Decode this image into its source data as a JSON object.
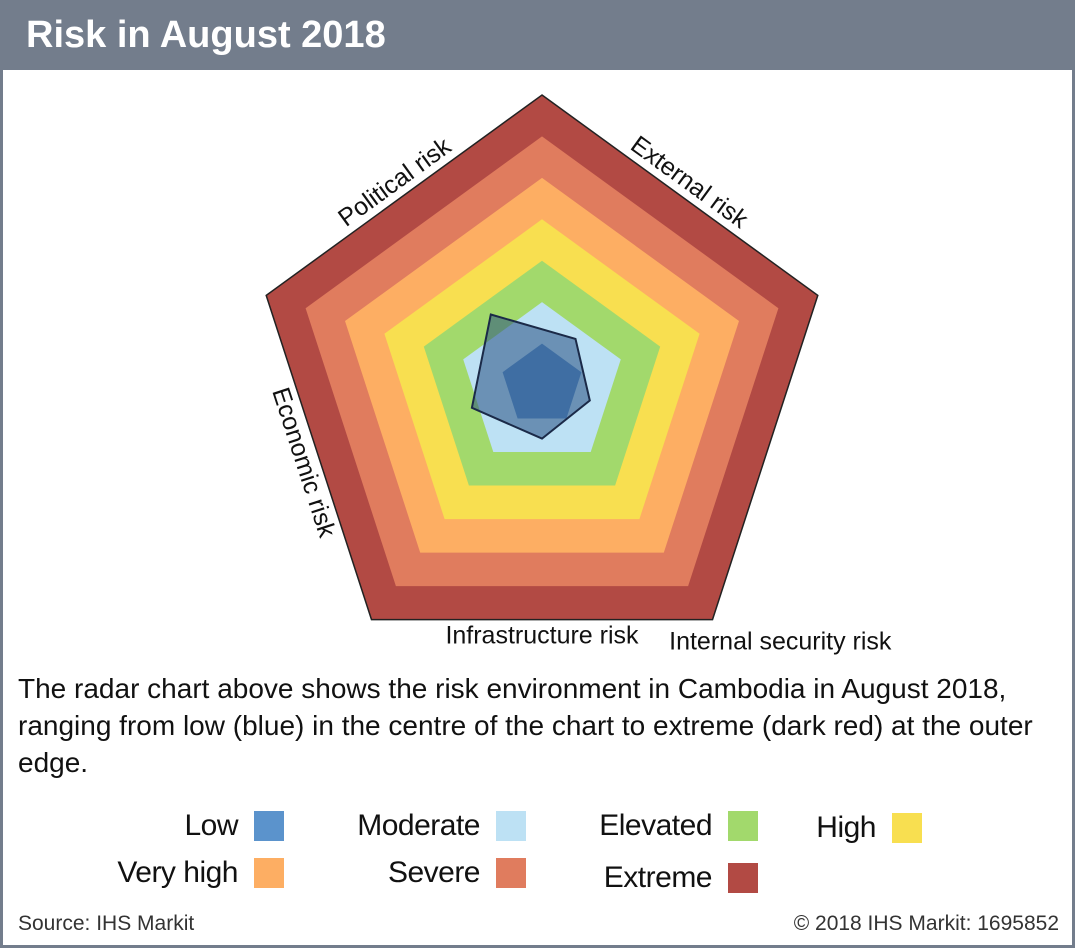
{
  "header": {
    "title": "Risk in August 2018"
  },
  "description": "The radar chart above shows the risk environment in Cambodia in August 2018, ranging from low (blue) in the centre of the chart to extreme (dark red) at the outer edge.",
  "legend": [
    {
      "label": "Low",
      "color": "#5b93cc"
    },
    {
      "label": "Moderate",
      "color": "#bde1f4"
    },
    {
      "label": "Elevated",
      "color": "#a2d96c"
    },
    {
      "label": "High",
      "color": "#f8df50"
    },
    {
      "label": "Very high",
      "color": "#fdae63"
    },
    {
      "label": "Severe",
      "color": "#e07c5e"
    },
    {
      "label": "Extreme",
      "color": "#b24a44"
    }
  ],
  "footer": {
    "source": "Source: IHS Markit",
    "copyright": "© 2018 IHS Markit: 1695852"
  },
  "chart_data": {
    "type": "radar",
    "title": "Risk in August 2018",
    "axes": [
      "Political risk",
      "External risk",
      "Internal security risk",
      "Infrastructure risk",
      "Economic risk"
    ],
    "levels": [
      "Low",
      "Moderate",
      "Elevated",
      "High",
      "Very high",
      "Severe",
      "Extreme"
    ],
    "level_colors": [
      "#5b93cc",
      "#bde1f4",
      "#a2d96c",
      "#f8df50",
      "#fdae63",
      "#e07c5e",
      "#b24a44"
    ],
    "scale_max": 7,
    "series": [
      {
        "values": [
          2.6,
          1.7,
          1.5,
          1.6,
          2.2
        ]
      }
    ]
  }
}
